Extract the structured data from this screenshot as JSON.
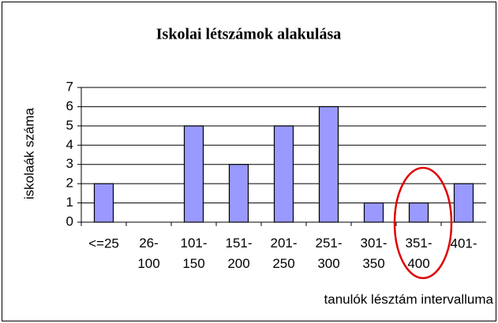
{
  "chart_data": {
    "type": "bar",
    "title": "Iskolai létszámok alakulása",
    "categories": [
      "<=25",
      "26- 100",
      "101- 150",
      "151- 200",
      "201- 250",
      "251- 300",
      "301- 350",
      "351- 400",
      "401-"
    ],
    "values": [
      2,
      0,
      5,
      3,
      5,
      6,
      1,
      1,
      2
    ],
    "color": "#9999ff",
    "ylabel": "iskolaák száma",
    "xlabel": "tanulók lésztám intervalluma",
    "ylim": [
      0,
      7
    ],
    "yticks": [
      0,
      1,
      2,
      3,
      4,
      5,
      6,
      7
    ],
    "grid": true
  }
}
